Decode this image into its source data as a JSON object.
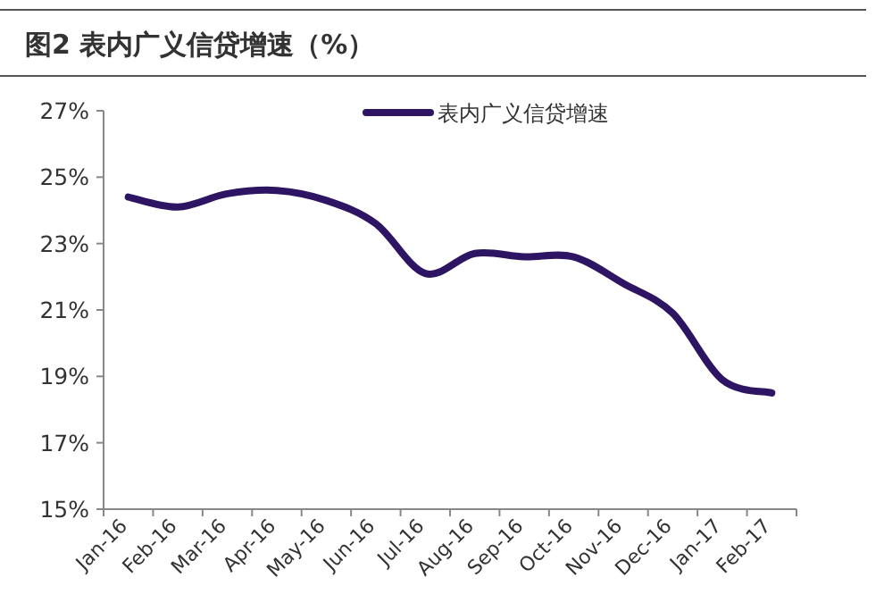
{
  "chart_data": {
    "type": "line",
    "title": "图2  表内广义信贷增速（%）",
    "categories": [
      "Jan-16",
      "Feb-16",
      "Mar-16",
      "Apr-16",
      "May-16",
      "Jun-16",
      "Jul-16",
      "Aug-16",
      "Sep-16",
      "Oct-16",
      "Nov-16",
      "Dec-16",
      "Jan-17",
      "Feb-17"
    ],
    "series": [
      {
        "name": "表内广义信贷增速",
        "color": "#2e1563",
        "values": [
          24.4,
          24.1,
          24.5,
          24.6,
          24.3,
          23.6,
          22.1,
          22.7,
          22.6,
          22.6,
          21.8,
          20.9,
          18.9,
          18.5
        ]
      }
    ],
    "ylim": [
      15,
      27
    ],
    "yticks": [
      {
        "value": 15,
        "label": "15%"
      },
      {
        "value": 17,
        "label": "17%"
      },
      {
        "value": 19,
        "label": "19%"
      },
      {
        "value": 21,
        "label": "21%"
      },
      {
        "value": 23,
        "label": "23%"
      },
      {
        "value": 25,
        "label": "25%"
      },
      {
        "value": 27,
        "label": "27%"
      }
    ],
    "grid": false,
    "legend": "top",
    "marker": "none",
    "line_style": "solid"
  }
}
